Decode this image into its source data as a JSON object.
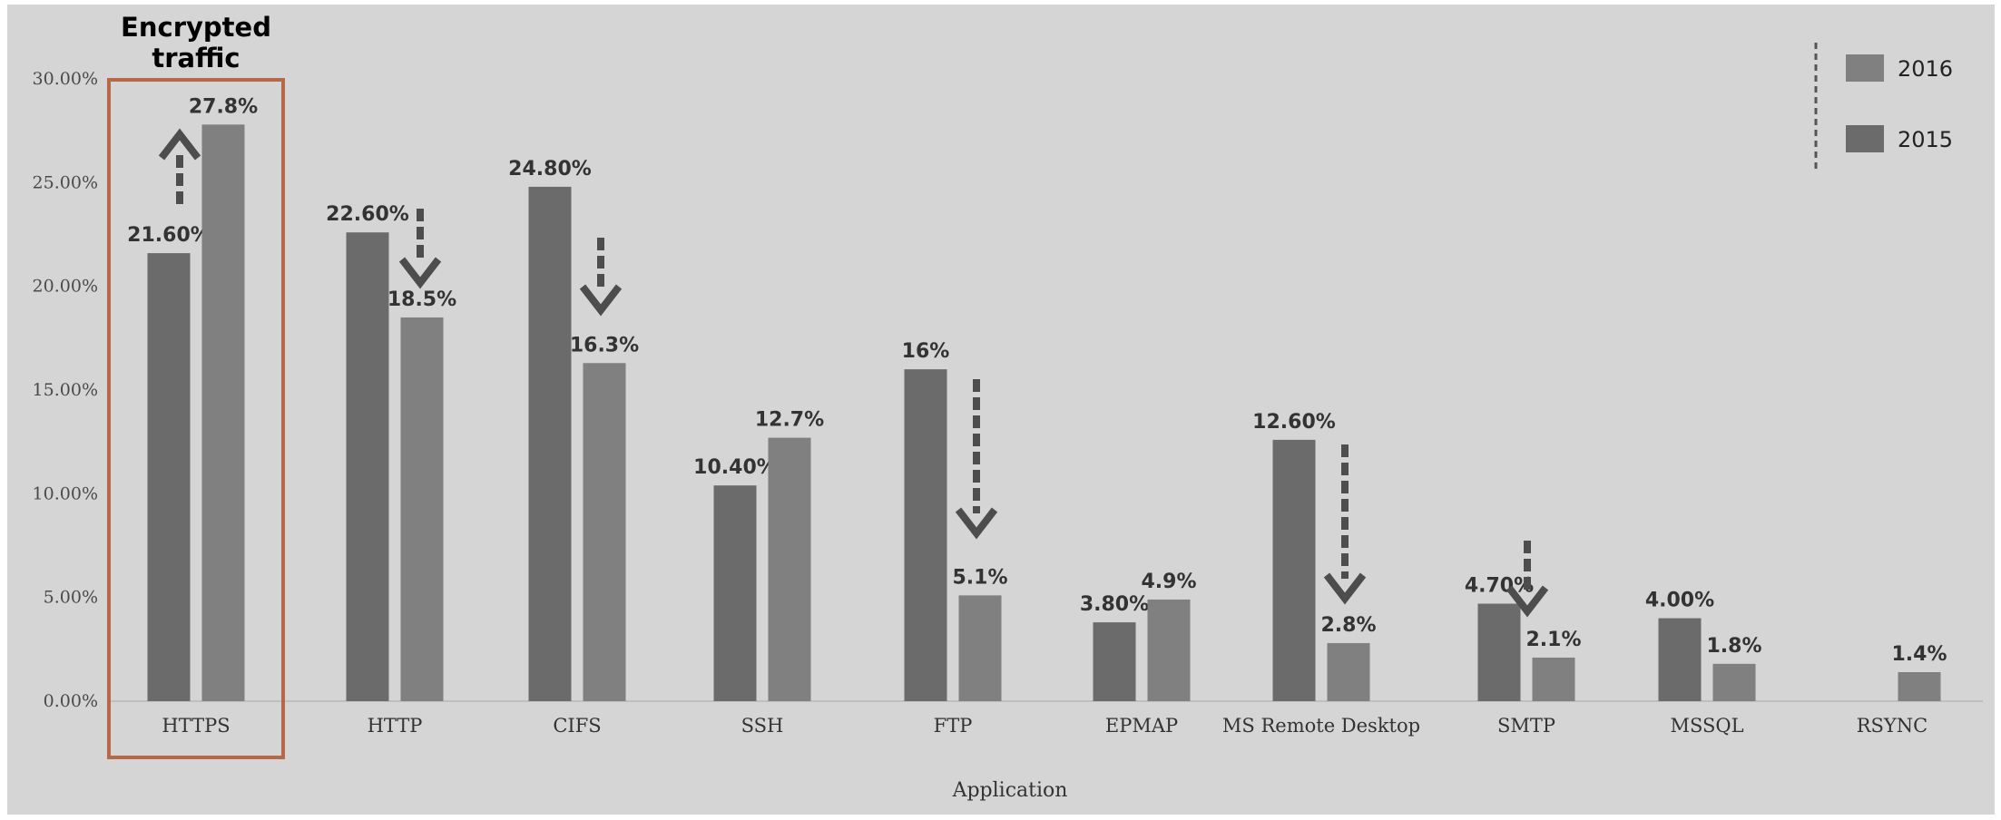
{
  "chart_data": {
    "type": "bar",
    "title": "",
    "xlabel": "Application",
    "ylabel": "",
    "ylim": [
      0,
      0.3
    ],
    "yticks": [
      "0.00%",
      "5.00%",
      "10.00%",
      "15.00%",
      "20.00%",
      "25.00%",
      "30.00%"
    ],
    "yticks_values": [
      0,
      0.05,
      0.1,
      0.15,
      0.2,
      0.25,
      0.3
    ],
    "categories": [
      "HTTPS",
      "HTTP",
      "CIFS",
      "SSH",
      "FTP",
      "EPMAP",
      "MS Remote Desktop",
      "SMTP",
      "MSSQL",
      "RSYNC"
    ],
    "series": [
      {
        "name": "2015",
        "color": "#6b6b6b",
        "values": [
          0.216,
          0.226,
          0.248,
          0.104,
          0.16,
          0.038,
          0.126,
          0.047,
          0.04,
          null
        ],
        "labels": [
          "21.60%",
          "22.60%",
          "24.80%",
          "10.40%",
          "16%",
          "3.80%",
          "12.60%",
          "4.70%",
          "4.00%",
          ""
        ]
      },
      {
        "name": "2016",
        "color": "#808080",
        "values": [
          0.278,
          0.185,
          0.163,
          0.127,
          0.051,
          0.049,
          0.028,
          0.021,
          0.018,
          0.014
        ],
        "labels": [
          "27.8%",
          "18.5%",
          "16.3%",
          "12.7%",
          "5.1%",
          "4.9%",
          "2.8%",
          "2.1%",
          "1.8%",
          "1.4%"
        ]
      }
    ],
    "legend": {
      "position": "top-right",
      "entries": [
        {
          "label": "2016",
          "color": "#808080"
        },
        {
          "label": "2015",
          "color": "#6b6b6b"
        }
      ]
    },
    "highlight": {
      "category": "HTTPS",
      "label": [
        "Encrypted",
        "traffic"
      ],
      "color": "#b5694a"
    },
    "trend_arrows": [
      {
        "category": "HTTPS",
        "direction": "up"
      },
      {
        "category": "HTTP",
        "direction": "down"
      },
      {
        "category": "CIFS",
        "direction": "down"
      },
      {
        "category": "FTP",
        "direction": "down"
      },
      {
        "category": "MS Remote Desktop",
        "direction": "down"
      },
      {
        "category": "SMTP",
        "direction": "down"
      }
    ],
    "grid": false
  }
}
